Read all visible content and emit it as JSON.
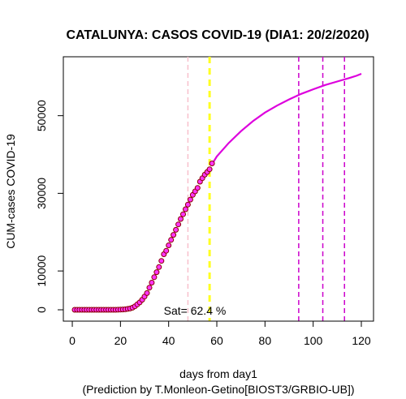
{
  "chart_data": {
    "type": "scatter",
    "title": "CATALUNYA: CASOS COVID-19 (DIA1: 20/2/2020)",
    "xlabel": "days from day1",
    "xlabel2": "(Prediction by T.Monleon-Getino[BIOST3/GRBIO-UB])",
    "ylabel": "CUM-cases COVID-19",
    "xlim": [
      1,
      120
    ],
    "ylim": [
      0,
      61000
    ],
    "x_ticks": [
      0,
      20,
      40,
      60,
      80,
      100,
      120
    ],
    "y_ticks": [
      0,
      10000,
      30000,
      50000
    ],
    "annotation": "Sat= 62.4 %",
    "observed": {
      "x": [
        1,
        2,
        3,
        4,
        5,
        6,
        7,
        8,
        9,
        10,
        11,
        12,
        13,
        14,
        15,
        16,
        17,
        18,
        19,
        20,
        21,
        22,
        23,
        24,
        25,
        26,
        27,
        28,
        29,
        30,
        31,
        32,
        33,
        34,
        35,
        36,
        37,
        38,
        39,
        40,
        41,
        42,
        43,
        44,
        45,
        46,
        47,
        48,
        49,
        50,
        51,
        52,
        53,
        54,
        55,
        56,
        57,
        58
      ],
      "y": [
        0,
        0,
        0,
        0,
        0,
        0,
        0,
        0,
        0,
        0,
        0,
        0,
        0,
        0,
        0,
        0,
        0,
        5,
        20,
        40,
        75,
        120,
        220,
        340,
        540,
        900,
        1400,
        1900,
        2600,
        3400,
        4300,
        5700,
        7000,
        8400,
        9700,
        11000,
        12600,
        14300,
        15200,
        16600,
        18000,
        19300,
        20600,
        22000,
        23400,
        24600,
        25900,
        27100,
        28400,
        29600,
        30500,
        31400,
        33000,
        33900,
        34800,
        35500,
        36200,
        37700
      ]
    },
    "prediction": {
      "x": [
        58,
        60,
        65,
        70,
        75,
        80,
        85,
        90,
        95,
        100,
        105,
        110,
        115,
        118,
        120
      ],
      "y": [
        37500,
        39500,
        43000,
        46000,
        48600,
        50800,
        52600,
        54200,
        55600,
        56800,
        57900,
        58800,
        59700,
        60300,
        60800
      ]
    },
    "vlines": [
      {
        "x": 48,
        "color": "#f8c0cc",
        "style": "dashed"
      },
      {
        "x": 57,
        "color": "#ffff22",
        "style": "dashed-bold"
      },
      {
        "x": 94,
        "color": "#cc00cc",
        "style": "dashed"
      },
      {
        "x": 104,
        "color": "#cc00cc",
        "style": "dashed"
      },
      {
        "x": 113,
        "color": "#cc00cc",
        "style": "dashed"
      }
    ],
    "colors": {
      "point_stroke": "#8b0000",
      "point_fill": "#ff33ff",
      "prediction_line": "#dd00dd"
    }
  }
}
